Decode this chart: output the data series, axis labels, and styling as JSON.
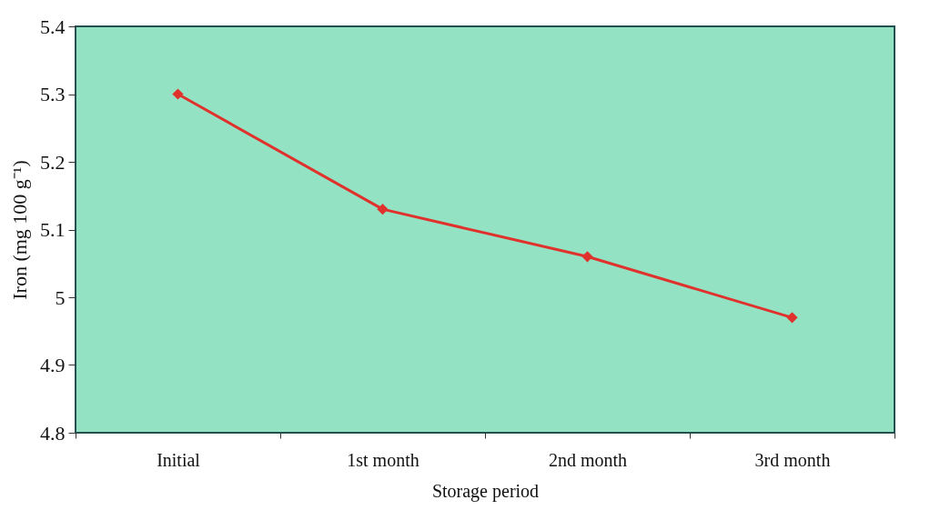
{
  "chart_data": {
    "type": "line",
    "xlabel": "Storage period",
    "ylabel": "Iron (mg 100 g⁻¹)",
    "categories": [
      "Initial",
      "1st month",
      "2nd month",
      "3rd month"
    ],
    "series": [
      {
        "color": "#e0322d",
        "values": [
          5.3,
          5.13,
          5.06,
          4.97
        ]
      }
    ],
    "ylim": [
      4.8,
      5.4
    ],
    "yticks": [
      4.8,
      4.9,
      5,
      5.1,
      5.2,
      5.3,
      5.4
    ],
    "grid": false,
    "legend": false,
    "marker": "diamond",
    "line_style": "solid"
  }
}
